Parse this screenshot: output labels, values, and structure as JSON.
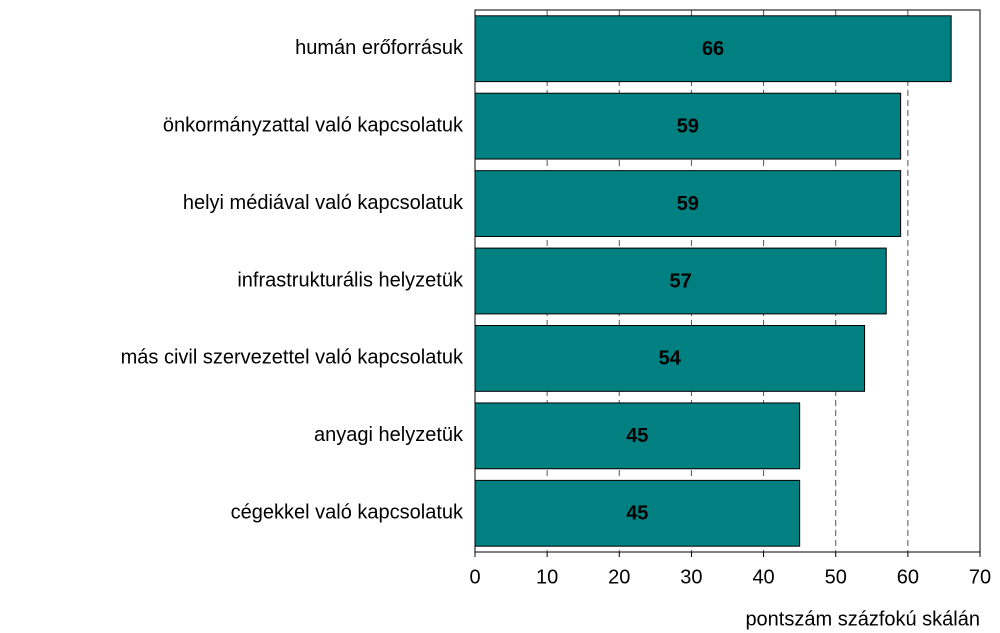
{
  "chart_data": {
    "type": "barh",
    "categories": [
      "humán erőforrásuk",
      "önkormányzattal való kapcsolatuk",
      "helyi médiával való kapcsolatuk",
      "infrastrukturális helyzetük",
      "más civil szervezettel való kapcsolatuk",
      "anyagi helyzetük",
      "cégekkel való kapcsolatuk"
    ],
    "values": [
      66,
      59,
      59,
      57,
      54,
      45,
      45
    ],
    "color": "#008080",
    "xlabel": "pontszám százfokú skálán",
    "xlim": [
      0,
      70
    ],
    "xticks": [
      0,
      10,
      20,
      30,
      40,
      50,
      60,
      70
    ],
    "grid": true
  }
}
